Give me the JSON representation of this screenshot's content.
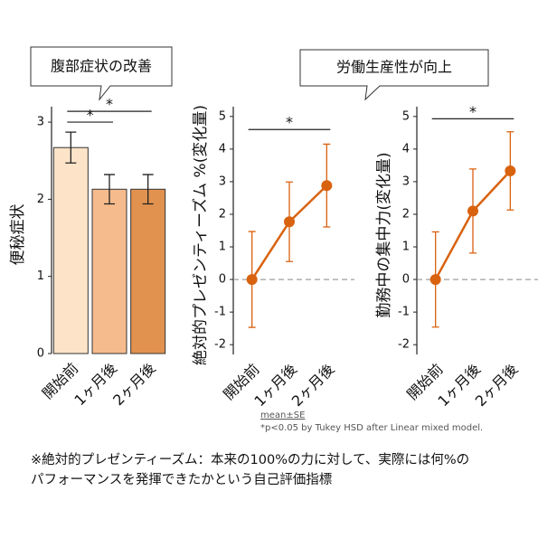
{
  "callouts": [
    "腹部症状の改善",
    "労働生産性が向上"
  ],
  "chart_data": [
    {
      "type": "bar",
      "ylabel": "便秘症状",
      "categories": [
        "開始前",
        "1ヶ月後",
        "2ヶ月後"
      ],
      "values": [
        2.67,
        2.13,
        2.13
      ],
      "errors": [
        0.2,
        0.19,
        0.19
      ],
      "colors": [
        "#fde3c8",
        "#f6bb8c",
        "#e2924f"
      ],
      "ylim": [
        0,
        3.2
      ],
      "yticks": [
        0,
        1,
        2,
        3
      ],
      "significance": [
        {
          "between": [
            "開始前",
            "1ヶ月後"
          ],
          "y": 3.0,
          "label": "*"
        },
        {
          "between": [
            "開始前",
            "2ヶ月後"
          ],
          "y": 3.14,
          "label": "*"
        }
      ]
    },
    {
      "type": "line",
      "ylabel": "絶対的プレゼンティーズム %(変化量)",
      "categories": [
        "開始前",
        "1ヶ月後",
        "2ヶ月後"
      ],
      "values": [
        0,
        1.77,
        2.88
      ],
      "errors": [
        1.47,
        1.22,
        1.27
      ],
      "color": "#d9620f",
      "ylim": [
        -2.3,
        5.3
      ],
      "yticks": [
        -2,
        -1,
        0,
        1,
        2,
        3,
        4,
        5
      ],
      "reference_line": 0,
      "significance": [
        {
          "between": [
            "開始前",
            "2ヶ月後"
          ],
          "y": 4.6,
          "label": "*"
        }
      ]
    },
    {
      "type": "line",
      "ylabel": "勤務中の集中力(変化量)",
      "categories": [
        "開始前",
        "1ヶ月後",
        "2ヶ月後"
      ],
      "values": [
        0,
        2.1,
        3.33
      ],
      "errors": [
        1.46,
        1.29,
        1.2
      ],
      "color": "#d9620f",
      "ylim": [
        -2.3,
        5.3
      ],
      "yticks": [
        -2,
        -1,
        0,
        1,
        2,
        3,
        4,
        5
      ],
      "reference_line": 0,
      "significance": [
        {
          "between": [
            "開始前",
            "2ヶ月後"
          ],
          "y": 4.93,
          "label": "*"
        }
      ]
    }
  ],
  "notes": [
    "mean±SE",
    "*p<0.05 by  Tukey HSD after Linear mixed model."
  ],
  "footnote": [
    "※絶対的プレゼンティーズム：本来の100%の力に対して、実際には何%の",
    "パフォーマンスを発揮できたかという自己評価指標"
  ]
}
